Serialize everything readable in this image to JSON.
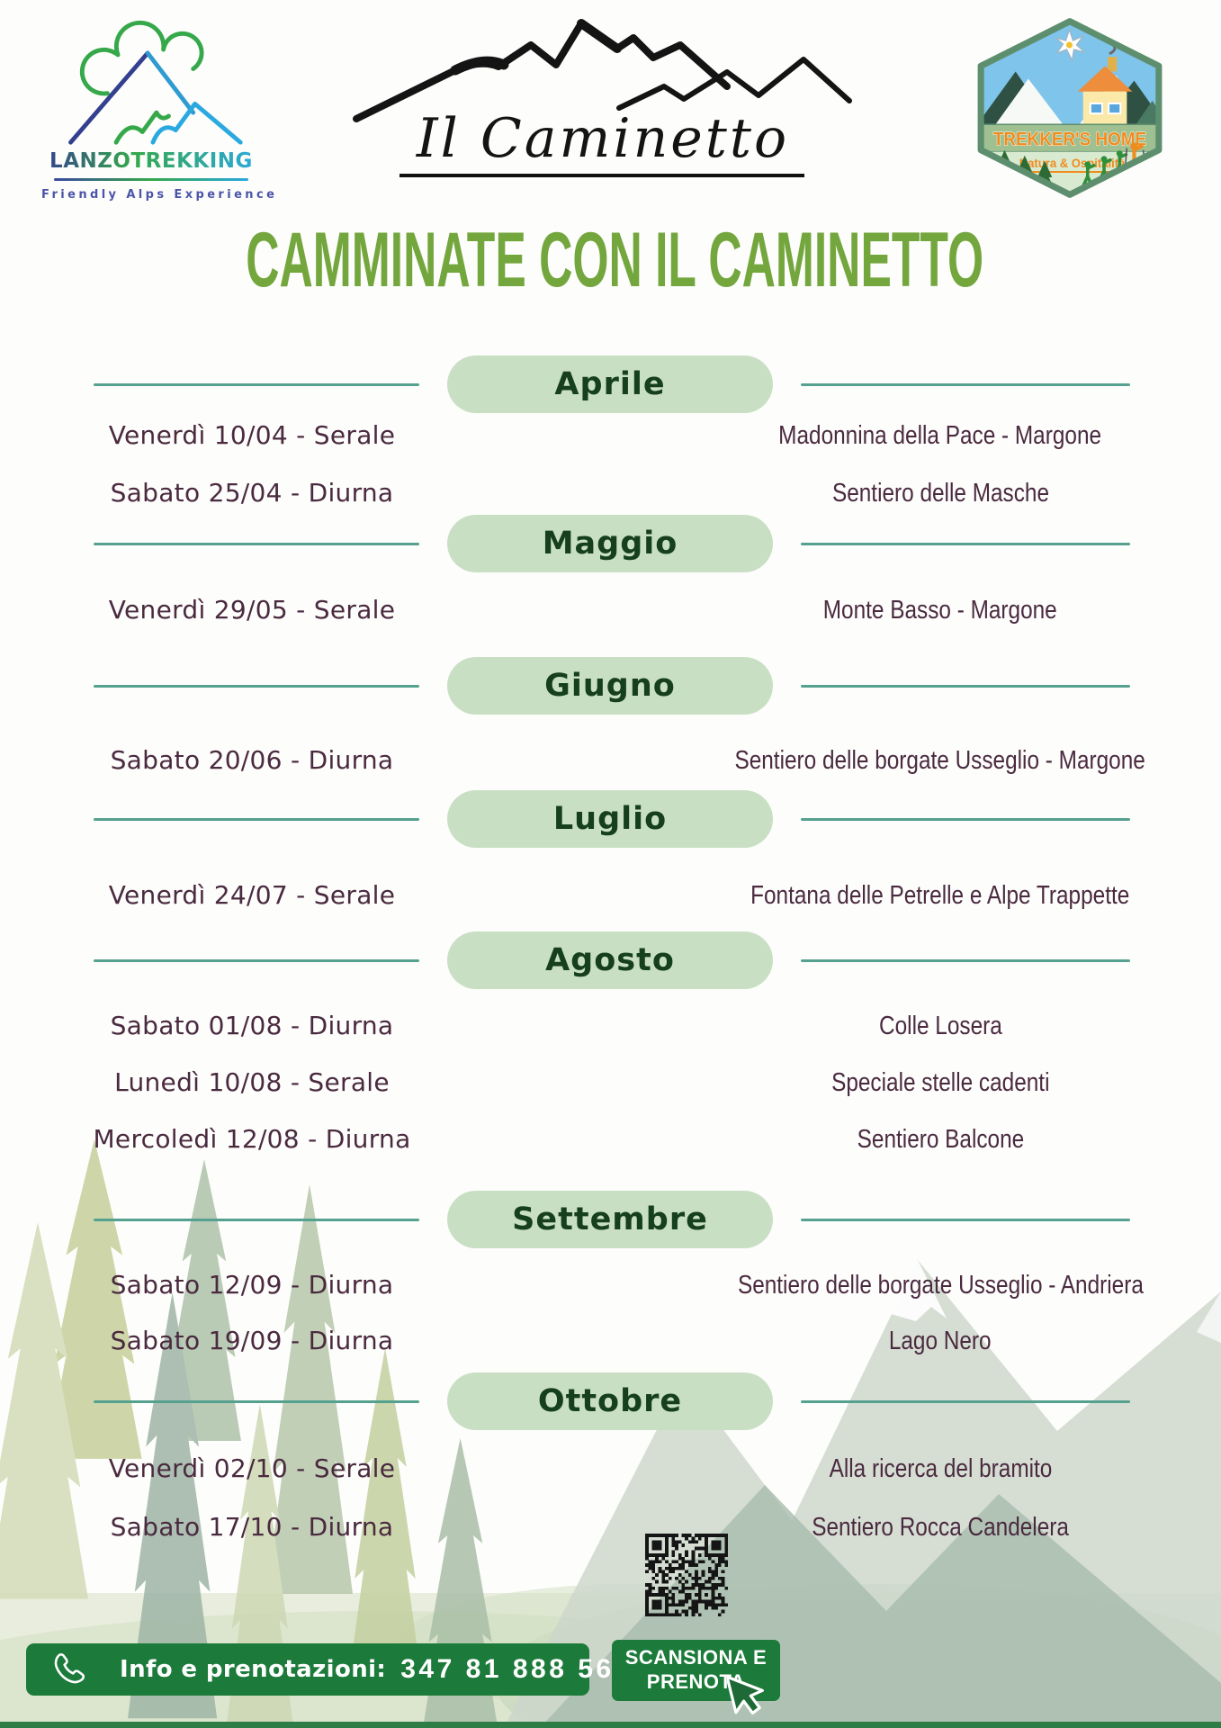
{
  "header": {
    "lanzo": {
      "brand": "LANZOTREKKING",
      "tagline": "Friendly Alps Experience"
    },
    "caminetto": {
      "name": "Il Caminetto"
    },
    "trekkers": {
      "title": "TREKKER'S HOME",
      "subtitle": "Natura & Ospitalità"
    }
  },
  "title": "CAMMINATE CON IL CAMINETTO",
  "months": [
    {
      "name": "Aprile",
      "events": [
        {
          "date": "Venerdì 10/04 - Serale",
          "destination": "Madonnina della Pace - Margone"
        },
        {
          "date": "Sabato 25/04 - Diurna",
          "destination": "Sentiero delle Masche"
        }
      ]
    },
    {
      "name": "Maggio",
      "events": [
        {
          "date": "Venerdì 29/05 - Serale",
          "destination": "Monte Basso - Margone"
        }
      ]
    },
    {
      "name": "Giugno",
      "events": [
        {
          "date": "Sabato 20/06 - Diurna",
          "destination": "Sentiero delle borgate Usseglio - Margone"
        }
      ]
    },
    {
      "name": "Luglio",
      "events": [
        {
          "date": "Venerdì 24/07 - Serale",
          "destination": "Fontana delle Petrelle e Alpe Trappette"
        }
      ]
    },
    {
      "name": "Agosto",
      "events": [
        {
          "date": "Sabato 01/08 - Diurna",
          "destination": "Colle Losera"
        },
        {
          "date": "Lunedì 10/08 - Serale",
          "destination": "Speciale stelle cadenti"
        },
        {
          "date": "Mercoledì 12/08 - Diurna",
          "destination": "Sentiero Balcone"
        }
      ]
    },
    {
      "name": "Settembre",
      "events": [
        {
          "date": "Sabato 12/09 - Diurna",
          "destination": "Sentiero delle borgate Usseglio - Andriera"
        },
        {
          "date": "Sabato 19/09 - Diurna",
          "destination": "Lago Nero"
        }
      ]
    },
    {
      "name": "Ottobre",
      "events": [
        {
          "date": "Venerdì 02/10 - Serale",
          "destination": "Alla ricerca del bramito"
        },
        {
          "date": "Sabato 17/10 - Diurna",
          "destination": "Sentiero Rocca Candelera"
        }
      ]
    }
  ],
  "footer": {
    "scan_line1": "SCANSIONA E",
    "scan_line2": "PRENOTA",
    "info_label": "Info e prenotazioni:",
    "phone": "347 81 888 56"
  },
  "colors": {
    "title_green": "#74a63e",
    "pill_bg": "#c9dfc4",
    "pill_text": "#16401d",
    "divider_teal": "#55a08e",
    "event_text": "#4a2a3f",
    "footer_green": "#1c7a3a",
    "badge_orange": "#f08c1e"
  }
}
